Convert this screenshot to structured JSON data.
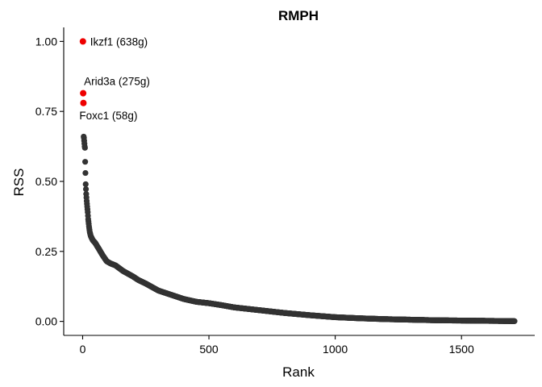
{
  "chart_data": {
    "type": "scatter",
    "title": "RMPH",
    "xlabel": "Rank",
    "ylabel": "RSS",
    "xlim": [
      -75,
      1790
    ],
    "ylim": [
      -0.05,
      1.05
    ],
    "xticks": [
      0,
      500,
      1000,
      1500
    ],
    "xtick_labels": [
      "0",
      "500",
      "1000",
      "1500"
    ],
    "yticks": [
      0,
      0.25,
      0.5,
      0.75,
      1.0
    ],
    "ytick_labels": [
      "0.00",
      "0.25",
      "0.50",
      "0.75",
      "1.00"
    ],
    "grid": false,
    "legend": "none",
    "colors": {
      "highlight": "#ee0000",
      "points": "#333333"
    },
    "highlighted": [
      {
        "rank": 1,
        "rss": 1.0,
        "label": "Ikzf1 (638g)"
      },
      {
        "rank": 2,
        "rss": 0.815,
        "label": "Arid3a (275g)"
      },
      {
        "rank": 3,
        "rss": 0.78,
        "label": "Foxc1 (58g)"
      }
    ],
    "curve": {
      "total_ranks": 1710,
      "anchors": [
        [
          4,
          0.66
        ],
        [
          5,
          0.655
        ],
        [
          6,
          0.645
        ],
        [
          7,
          0.635
        ],
        [
          8,
          0.625
        ],
        [
          9,
          0.62
        ],
        [
          10,
          0.57
        ],
        [
          12,
          0.49
        ],
        [
          14,
          0.455
        ],
        [
          16,
          0.43
        ],
        [
          18,
          0.41
        ],
        [
          20,
          0.39
        ],
        [
          22,
          0.365
        ],
        [
          25,
          0.34
        ],
        [
          28,
          0.32
        ],
        [
          32,
          0.305
        ],
        [
          40,
          0.29
        ],
        [
          50,
          0.28
        ],
        [
          60,
          0.265
        ],
        [
          70,
          0.25
        ],
        [
          80,
          0.235
        ],
        [
          95,
          0.215
        ],
        [
          110,
          0.207
        ],
        [
          130,
          0.2
        ],
        [
          145,
          0.19
        ],
        [
          160,
          0.18
        ],
        [
          180,
          0.17
        ],
        [
          200,
          0.16
        ],
        [
          220,
          0.148
        ],
        [
          250,
          0.135
        ],
        [
          280,
          0.12
        ],
        [
          300,
          0.11
        ],
        [
          350,
          0.095
        ],
        [
          400,
          0.08
        ],
        [
          450,
          0.07
        ],
        [
          500,
          0.065
        ],
        [
          550,
          0.058
        ],
        [
          600,
          0.05
        ],
        [
          700,
          0.04
        ],
        [
          800,
          0.03
        ],
        [
          900,
          0.022
        ],
        [
          1000,
          0.015
        ],
        [
          1100,
          0.011
        ],
        [
          1200,
          0.008
        ],
        [
          1300,
          0.006
        ],
        [
          1400,
          0.004
        ],
        [
          1500,
          0.003
        ],
        [
          1600,
          0.002
        ],
        [
          1710,
          0.001
        ]
      ]
    }
  }
}
